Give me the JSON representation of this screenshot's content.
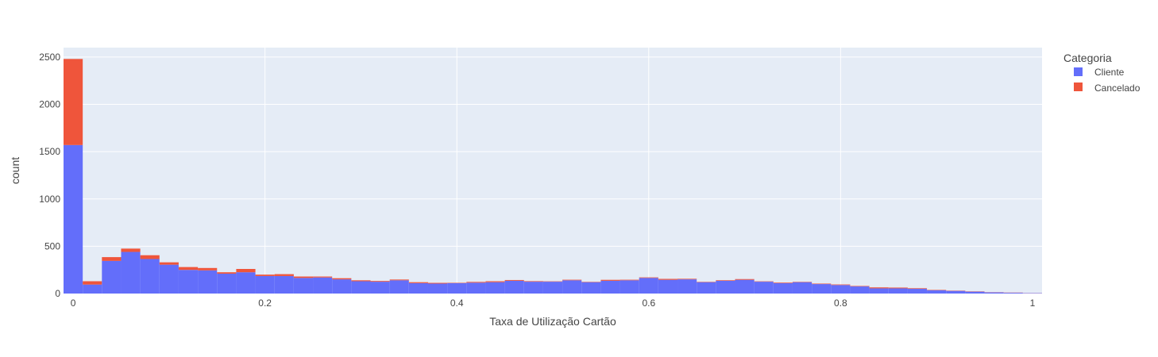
{
  "chart_data": {
    "type": "bar",
    "stacked": true,
    "xlabel": "Taxa de Utilização Cartão",
    "ylabel": "count",
    "xlim": [
      -0.01,
      1.01
    ],
    "ylim": [
      0,
      2600
    ],
    "x_ticks": [
      0,
      0.2,
      0.4,
      0.6,
      0.8,
      1
    ],
    "x_tick_labels": [
      "0",
      "0.2",
      "0.4",
      "0.6",
      "0.8",
      "1"
    ],
    "y_ticks": [
      0,
      500,
      1000,
      1500,
      2000,
      2500
    ],
    "y_tick_labels": [
      "0",
      "500",
      "1000",
      "1500",
      "2000",
      "2500"
    ],
    "grid": true,
    "legend_title": "Categoria",
    "legend_position": "right",
    "bin_width": 0.02,
    "x": [
      0.0,
      0.02,
      0.04,
      0.06,
      0.08,
      0.1,
      0.12,
      0.14,
      0.16,
      0.18,
      0.2,
      0.22,
      0.24,
      0.26,
      0.28,
      0.3,
      0.32,
      0.34,
      0.36,
      0.38,
      0.4,
      0.42,
      0.44,
      0.46,
      0.48,
      0.5,
      0.52,
      0.54,
      0.56,
      0.58,
      0.6,
      0.62,
      0.64,
      0.66,
      0.68,
      0.7,
      0.72,
      0.74,
      0.76,
      0.78,
      0.8,
      0.82,
      0.84,
      0.86,
      0.88,
      0.9,
      0.92,
      0.94,
      0.96,
      0.98,
      1.0
    ],
    "series": [
      {
        "name": "Cliente",
        "color": "#636efa",
        "values": [
          1570,
          95,
          345,
          440,
          365,
          305,
          250,
          245,
          210,
          225,
          185,
          185,
          165,
          170,
          150,
          130,
          125,
          140,
          110,
          105,
          110,
          115,
          120,
          135,
          125,
          125,
          140,
          120,
          135,
          140,
          165,
          145,
          150,
          120,
          135,
          145,
          125,
          110,
          120,
          100,
          90,
          75,
          55,
          55,
          50,
          35,
          28,
          20,
          12,
          8,
          4
        ]
      },
      {
        "name": "Cancelado",
        "color": "#ef553b",
        "values": [
          910,
          35,
          40,
          35,
          40,
          25,
          30,
          25,
          15,
          35,
          15,
          20,
          15,
          10,
          12,
          10,
          8,
          8,
          10,
          8,
          4,
          8,
          10,
          8,
          6,
          4,
          6,
          4,
          10,
          6,
          6,
          10,
          6,
          4,
          6,
          8,
          4,
          6,
          4,
          5,
          6,
          5,
          10,
          8,
          6,
          4,
          3,
          3,
          2,
          2,
          1
        ]
      }
    ]
  },
  "colors": {
    "plot_bg": "#e5ecf6",
    "grid": "#ffffff",
    "text": "#444444"
  }
}
